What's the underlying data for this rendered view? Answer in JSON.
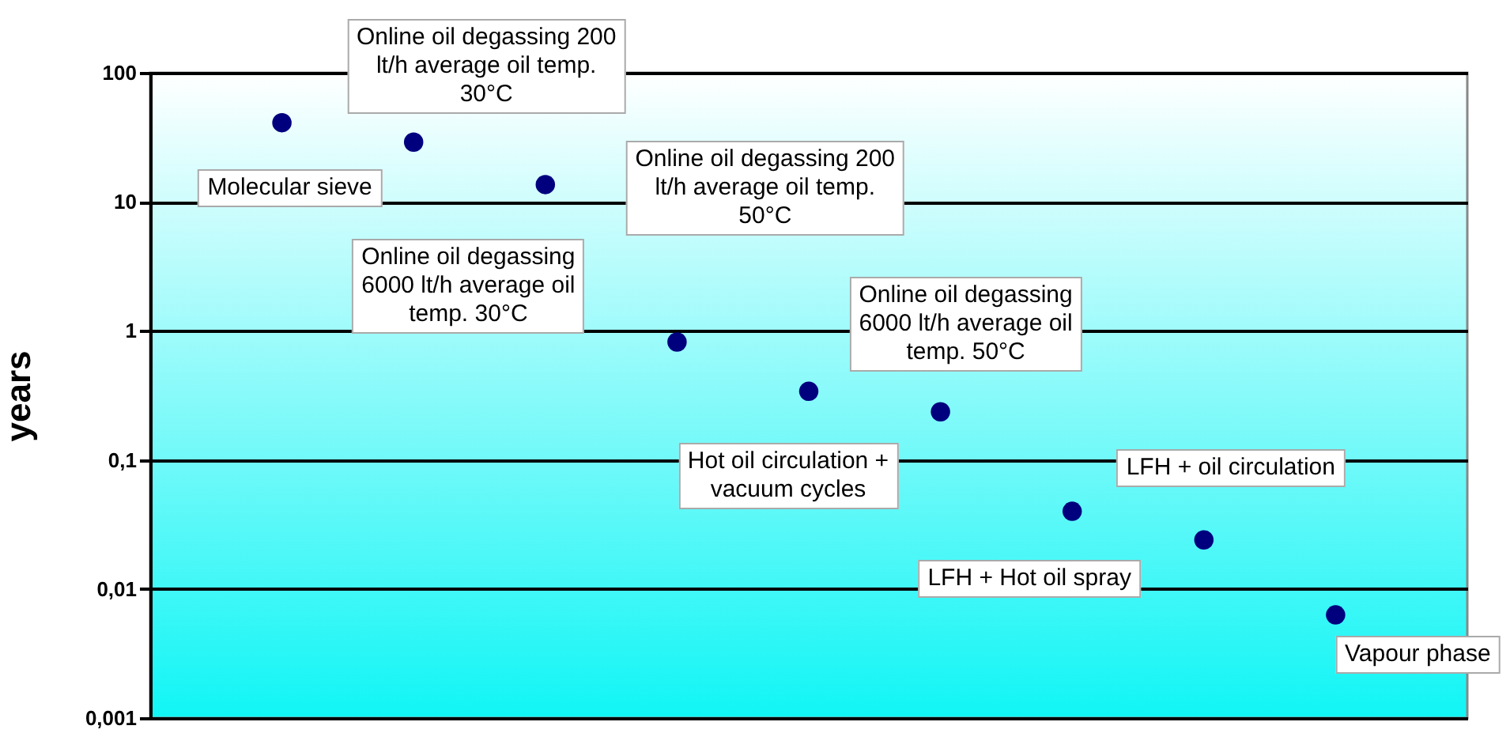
{
  "chart_data": {
    "type": "scatter",
    "ylabel": "years",
    "categories": [
      null,
      null,
      null,
      null,
      null,
      null,
      null,
      null,
      null
    ],
    "values": [
      41,
      29,
      13.6,
      0.82,
      0.34,
      0.236,
      0.04,
      0.024,
      0.0063
    ],
    "color": "#00007f",
    "marker": "circle",
    "log": "y",
    "grid": "y",
    "tick_labels": "y",
    "ylim": [
      0.001,
      100
    ],
    "yticks": [
      {
        "value": 0.001,
        "label": "0,001"
      },
      {
        "value": 0.01,
        "label": "0,01"
      },
      {
        "value": 0.1,
        "label": "0,1"
      },
      1,
      10,
      100
    ],
    "annotations": [
      "Molecular sieve",
      "Online oil degassing 200 lt/h average oil temp. 30°C",
      "Online oil degassing 200 lt/h average oil temp. 50°C",
      "Online oil degassing 6000 lt/h average oil temp. 30°C",
      "Hot oil circulation + vacuum cycles",
      "Online oil degassing 6000 lt/h average oil temp. 50°C",
      "LFH + Hot oil spray",
      "LFH + oil circulation",
      "Vapour phase"
    ]
  }
}
